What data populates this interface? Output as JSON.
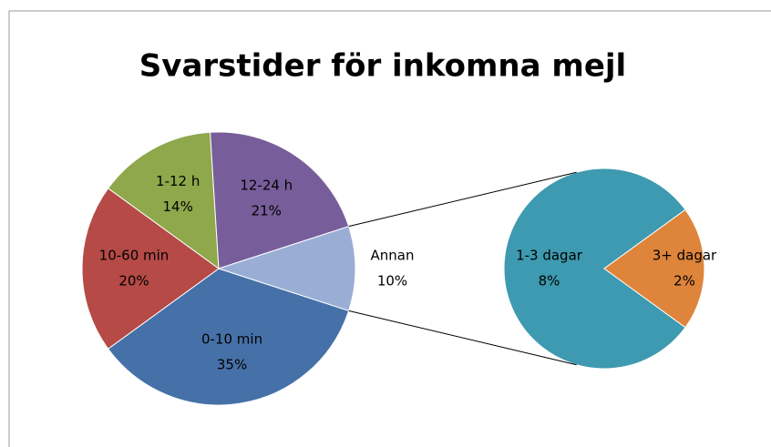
{
  "chart_data": {
    "type": "pie-of-pie",
    "title": "Svarstider för inkomna mejl",
    "categories": [
      "0-10 min",
      "10-60 min",
      "1-12 h",
      "12-24 h",
      "Annan"
    ],
    "values": [
      35,
      20,
      14,
      21,
      10
    ],
    "value_labels": [
      "35%",
      "20%",
      "14%",
      "21%",
      "10%"
    ],
    "colors": [
      "#4671a8",
      "#b54a47",
      "#8fa84b",
      "#775e9a",
      "#9aaed5"
    ],
    "secondary": {
      "categories": [
        "1-3 dagar",
        "3+ dagar"
      ],
      "values": [
        8,
        2
      ],
      "value_labels": [
        "8%",
        "2%"
      ],
      "colors": [
        "#3d9ab0",
        "#de843b"
      ]
    }
  }
}
